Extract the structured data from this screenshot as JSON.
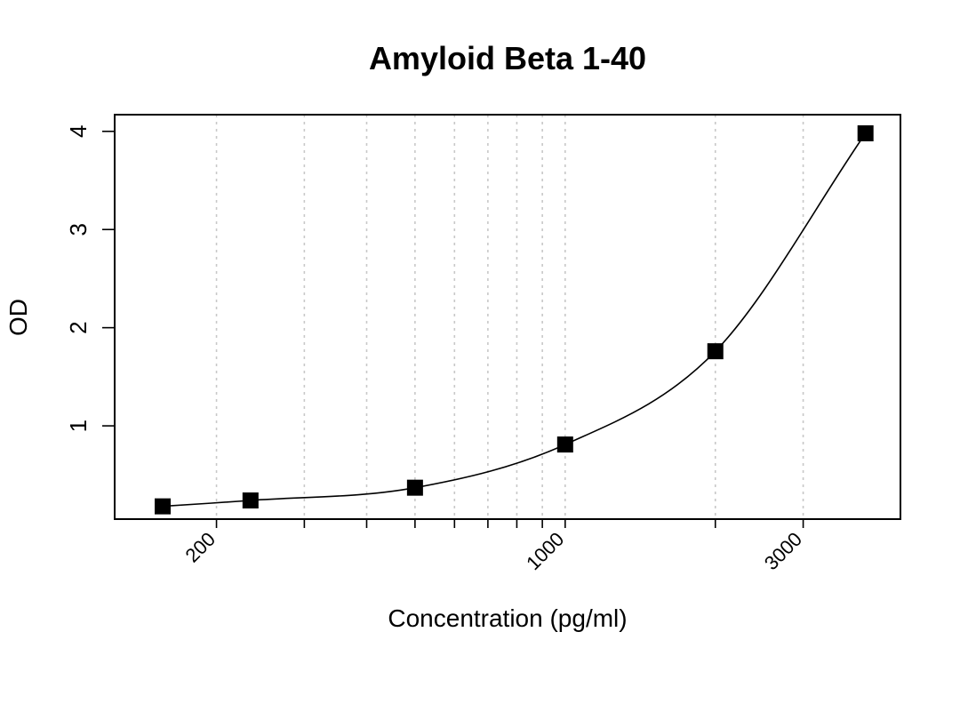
{
  "chart_data": {
    "type": "scatter",
    "title": "Amyloid Beta 1-40",
    "xlabel": "Concentration (pg/ml)",
    "ylabel": "OD",
    "x_scale": "log",
    "xlim": [
      125,
      4700
    ],
    "ylim": [
      0.05,
      4.17
    ],
    "x_ticks": [
      200,
      1000,
      3000
    ],
    "x_tick_labels": [
      "200",
      "1000",
      "3000"
    ],
    "y_ticks": [
      1,
      2,
      3,
      4
    ],
    "y_tick_labels": [
      "1",
      "2",
      "3",
      "4"
    ],
    "x_gridlines": [
      200,
      300,
      400,
      500,
      600,
      700,
      800,
      900,
      1000,
      2000,
      3000
    ],
    "grid": "vertical dotted",
    "marker": "filled-square",
    "series": [
      {
        "x": [
          156,
          234,
          500,
          1000,
          2000,
          4000
        ],
        "y": [
          0.18,
          0.24,
          0.37,
          0.81,
          1.76,
          3.98
        ]
      }
    ],
    "fit_curve": {
      "shown": true,
      "type": "smooth"
    }
  }
}
